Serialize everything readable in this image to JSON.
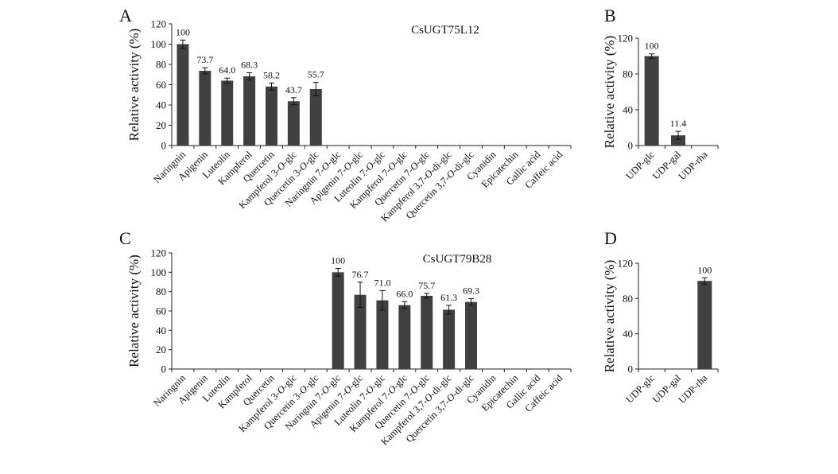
{
  "figure": {
    "ylabel": "Relative activity (%)"
  },
  "chart_data": [
    {
      "panel": "A",
      "type": "bar",
      "title": "CsUGT75L12",
      "ylabel": "Relative activity (%)",
      "ylim": [
        0,
        120
      ],
      "yticks": [
        0,
        20,
        40,
        60,
        80,
        100,
        120
      ],
      "categories": [
        "Naringnin",
        "Apigenin",
        "Luteolin",
        "Kampferol",
        "Quercetin",
        "Kampferol 3-O-glc",
        "Quercetin 3-O-glc",
        "Naringnin 7-O-glc",
        "Apigenin 7-O-glc",
        "Luteolin 7-O-glc",
        "Kampferol 7-O-glc",
        "Quercetin 7-O-glc",
        "Kampferol 3,7-O-di-glc",
        "Quercetin 3,7-O-di-glc",
        "Cyanidin",
        "Epicatechin",
        "Gallic acid",
        "Caffeic acid"
      ],
      "values": [
        100,
        73.7,
        64.0,
        68.3,
        58.2,
        43.7,
        55.7,
        0,
        0,
        0,
        0,
        0,
        0,
        0,
        0,
        0,
        0,
        0
      ],
      "errors": [
        4,
        3,
        2.5,
        3.5,
        3.5,
        3.5,
        6.5,
        0,
        0,
        0,
        0,
        0,
        0,
        0,
        0,
        0,
        0,
        0
      ],
      "data_labels": [
        "100",
        "73.7",
        "64.0",
        "68.3",
        "58.2",
        "43.7",
        "55.7",
        "",
        "",
        "",
        "",
        "",
        "",
        "",
        "",
        "",
        "",
        ""
      ],
      "color": "#404040"
    },
    {
      "panel": "B",
      "type": "bar",
      "title": "",
      "ylabel": "Relative activity (%)",
      "ylim": [
        0,
        120
      ],
      "yticks": [
        0,
        40,
        80,
        120
      ],
      "categories": [
        "UDP-glc",
        "UDP-gal",
        "UDP-rha"
      ],
      "values": [
        100,
        11.4,
        0
      ],
      "errors": [
        2.5,
        4.5,
        0
      ],
      "data_labels": [
        "100",
        "11.4",
        ""
      ],
      "color": "#404040"
    },
    {
      "panel": "C",
      "type": "bar",
      "title": "CsUGT79B28",
      "ylabel": "Relative activity (%)",
      "ylim": [
        0,
        120
      ],
      "yticks": [
        0,
        20,
        40,
        60,
        80,
        100,
        120
      ],
      "categories": [
        "Naringnin",
        "Apigenin",
        "Luteolin",
        "Kampferol",
        "Quercetin",
        "Kampferol 3-O-glc",
        "Quercetin 3-O-glc",
        "Naringnin 7-O-glc",
        "Apigenin 7-O-glc",
        "Luteolin 7-O-glc",
        "Kampferol 7-O-glc",
        "Quercetin 7-O-glc",
        "Kampferol 3,7-O-di-glc",
        "Quercetin 3,7-O-di-glc",
        "Cyanidin",
        "Epicatechin",
        "Gallic acid",
        "Caffeic acid"
      ],
      "values": [
        0,
        0,
        0,
        0,
        0,
        0,
        0,
        100,
        76.7,
        71.0,
        66.0,
        75.7,
        61.3,
        69.3,
        0,
        0,
        0,
        0
      ],
      "errors": [
        0,
        0,
        0,
        0,
        0,
        0,
        0,
        4,
        13,
        10,
        3.5,
        2.5,
        4.5,
        3.5,
        0,
        0,
        0,
        0
      ],
      "data_labels": [
        "",
        "",
        "",
        "",
        "",
        "",
        "",
        "100",
        "76.7",
        "71.0",
        "66.0",
        "75.7",
        "61.3",
        "69.3",
        "",
        "",
        "",
        ""
      ],
      "color": "#404040"
    },
    {
      "panel": "D",
      "type": "bar",
      "title": "",
      "ylabel": "Relative activity (%)",
      "ylim": [
        0,
        120
      ],
      "yticks": [
        0,
        40,
        80,
        120
      ],
      "categories": [
        "UDP-glc",
        "UDP-gal",
        "UDP-rha"
      ],
      "values": [
        0,
        0,
        100
      ],
      "errors": [
        0,
        0,
        3.5
      ],
      "data_labels": [
        "",
        "",
        "100"
      ],
      "color": "#404040"
    }
  ]
}
